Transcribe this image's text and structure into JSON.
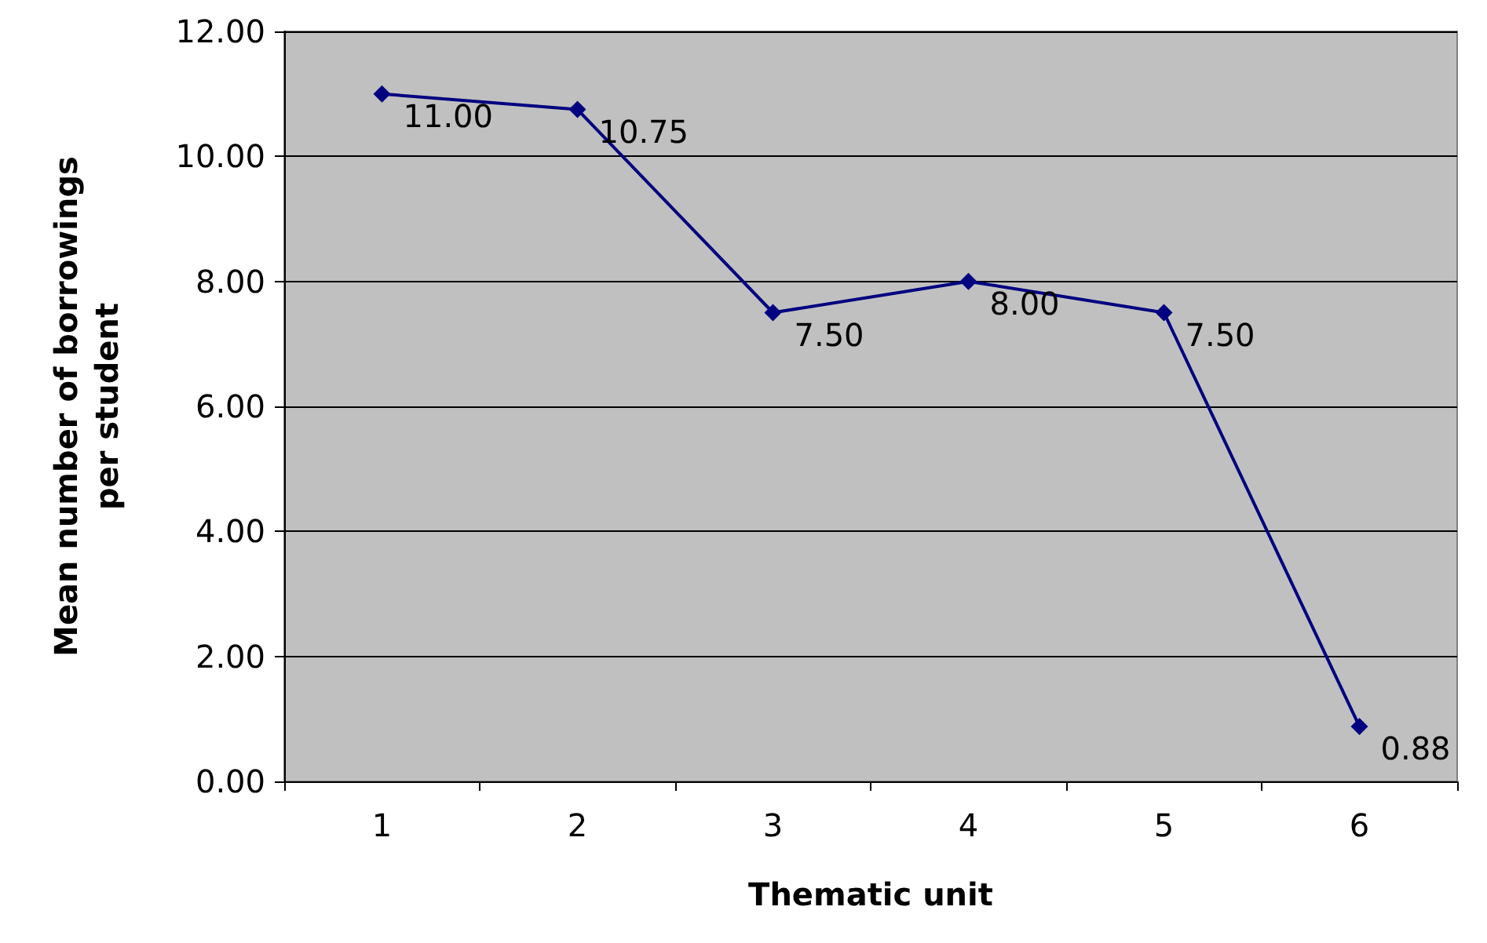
{
  "chart_data": {
    "type": "line",
    "xlabel": "Thematic unit",
    "ylabel": "Mean number of borrowings\nper student",
    "categories": [
      "1",
      "2",
      "3",
      "4",
      "5",
      "6"
    ],
    "series": [
      {
        "color": "#000080",
        "values": [
          11.0,
          10.75,
          7.5,
          8.0,
          7.5,
          0.88
        ],
        "value_labels": [
          "11.00",
          "10.75",
          "7.50",
          "8.00",
          "7.50",
          "0.88"
        ]
      }
    ],
    "ylim": [
      0,
      12
    ],
    "yticks": [
      {
        "value": 0,
        "label": "0.00"
      },
      {
        "value": 2,
        "label": "2.00"
      },
      {
        "value": 4,
        "label": "4.00"
      },
      {
        "value": 6,
        "label": "6.00"
      },
      {
        "value": 8,
        "label": "8.00"
      },
      {
        "value": 10,
        "label": "10.00"
      },
      {
        "value": 12,
        "label": "12.00"
      }
    ],
    "grid": "y",
    "marker": "diamond",
    "line_style": "solid"
  }
}
